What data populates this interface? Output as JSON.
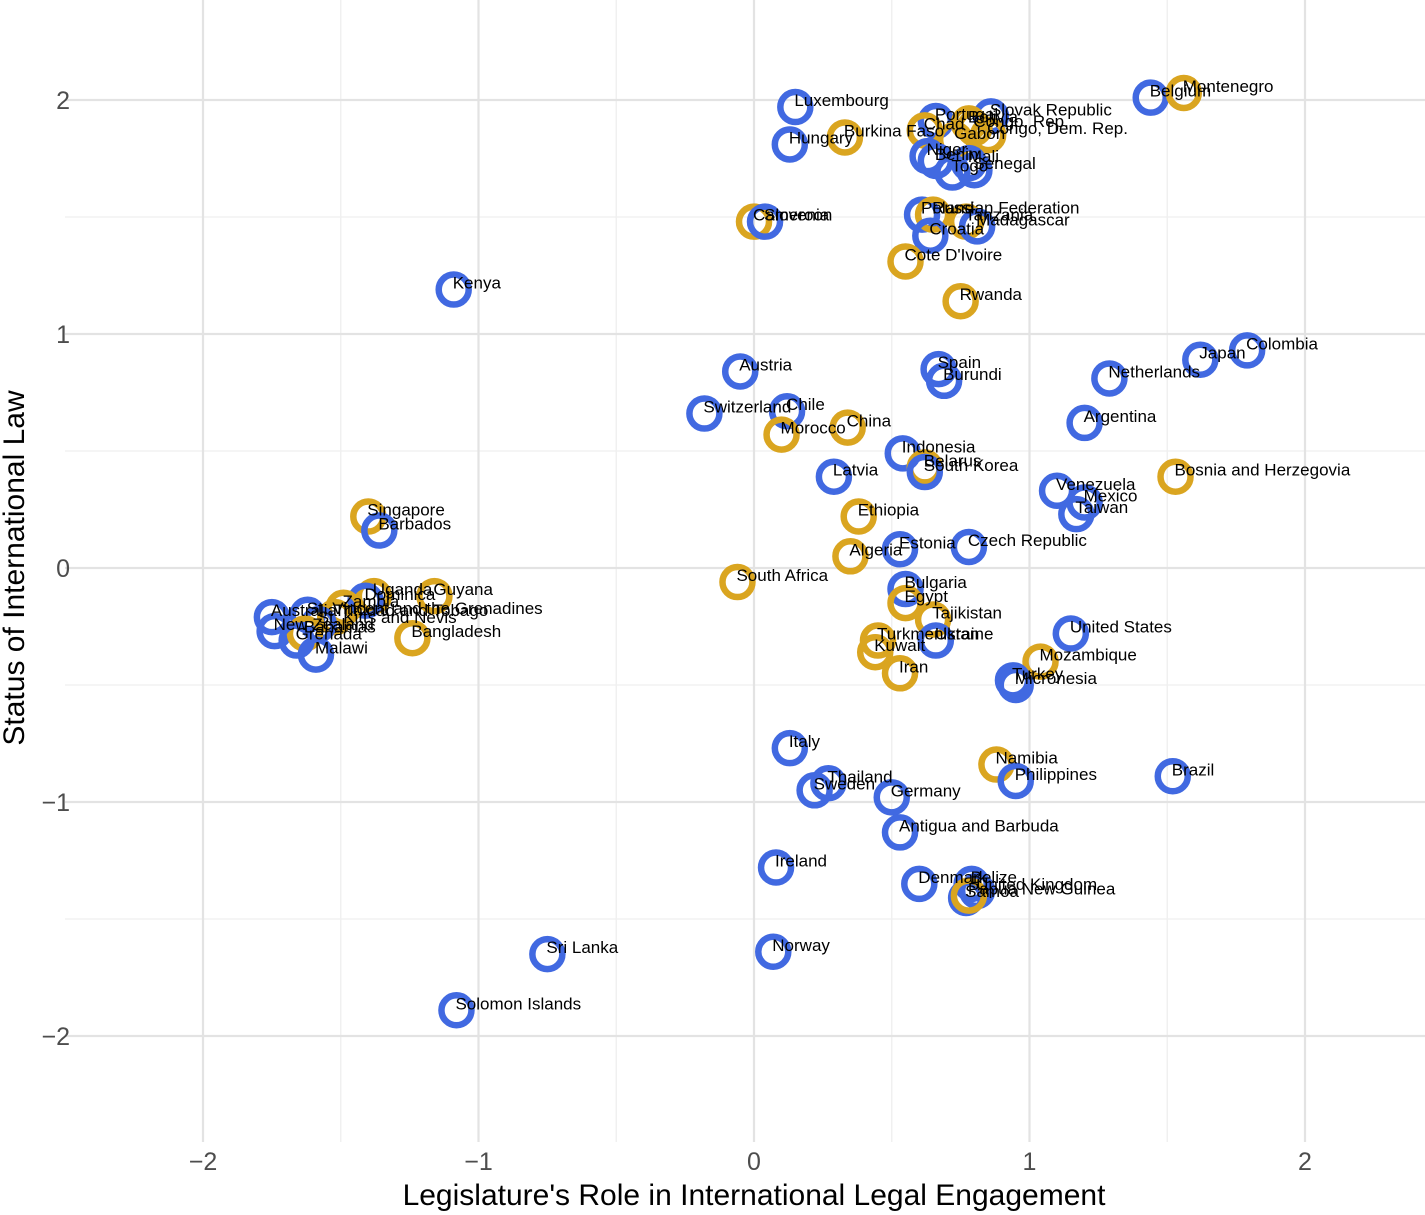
{
  "chart_data": {
    "type": "scatter",
    "xlabel": "Legislature's Role in International Legal Engagement",
    "ylabel": "Status of International Law",
    "xlim": [
      -2.5,
      2.5
    ],
    "ylim": [
      -2.35,
      2.4
    ],
    "x_ticks": [
      -2,
      -1,
      0,
      1,
      2
    ],
    "x_tick_labels": [
      "−2",
      "−1",
      "0",
      "1",
      "2"
    ],
    "y_ticks": [
      -2,
      -1,
      0,
      1,
      2
    ],
    "y_tick_labels": [
      "−2",
      "−1",
      "0",
      "1",
      "2"
    ],
    "grid": true,
    "legend": "none",
    "colors": {
      "blue": "#4169e1",
      "gold": "#daa520"
    },
    "points": [
      {
        "label": "Belgium",
        "x": 1.44,
        "y": 2.01,
        "color": "blue"
      },
      {
        "label": "Montenegro",
        "x": 1.56,
        "y": 2.03,
        "color": "gold"
      },
      {
        "label": "Luxembourg",
        "x": 0.15,
        "y": 1.97,
        "color": "blue"
      },
      {
        "label": "Hungary",
        "x": 0.13,
        "y": 1.81,
        "color": "blue"
      },
      {
        "label": "Burkina Faso",
        "x": 0.33,
        "y": 1.84,
        "color": "gold"
      },
      {
        "label": "Slovak Republic",
        "x": 0.86,
        "y": 1.93,
        "color": "blue"
      },
      {
        "label": "Portugal",
        "x": 0.66,
        "y": 1.91,
        "color": "blue"
      },
      {
        "label": "Bolivia",
        "x": 0.78,
        "y": 1.9,
        "color": "gold"
      },
      {
        "label": "Chad",
        "x": 0.62,
        "y": 1.87,
        "color": "gold"
      },
      {
        "label": "Congo, Rep.",
        "x": 0.8,
        "y": 1.88,
        "color": "gold"
      },
      {
        "label": "Congo, Dem. Rep.",
        "x": 0.85,
        "y": 1.85,
        "color": "gold"
      },
      {
        "label": "Gabon",
        "x": 0.73,
        "y": 1.83,
        "color": "gold"
      },
      {
        "label": "Niger",
        "x": 0.63,
        "y": 1.76,
        "color": "blue"
      },
      {
        "label": "Benin",
        "x": 0.66,
        "y": 1.74,
        "color": "blue"
      },
      {
        "label": "Mali",
        "x": 0.78,
        "y": 1.73,
        "color": "blue"
      },
      {
        "label": "Togo",
        "x": 0.72,
        "y": 1.69,
        "color": "blue"
      },
      {
        "label": "Senegal",
        "x": 0.8,
        "y": 1.7,
        "color": "blue"
      },
      {
        "label": "Cameroon",
        "x": 0.0,
        "y": 1.48,
        "color": "gold"
      },
      {
        "label": "Slovenia",
        "x": 0.04,
        "y": 1.48,
        "color": "blue"
      },
      {
        "label": "Poland",
        "x": 0.61,
        "y": 1.51,
        "color": "blue"
      },
      {
        "label": "Russian Federation",
        "x": 0.65,
        "y": 1.51,
        "color": "gold"
      },
      {
        "label": "Tanzania",
        "x": 0.77,
        "y": 1.48,
        "color": "gold"
      },
      {
        "label": "Madagascar",
        "x": 0.81,
        "y": 1.46,
        "color": "blue"
      },
      {
        "label": "Croatia",
        "x": 0.64,
        "y": 1.42,
        "color": "blue"
      },
      {
        "label": "Cote D'Ivoire",
        "x": 0.55,
        "y": 1.31,
        "color": "gold"
      },
      {
        "label": "Kenya",
        "x": -1.09,
        "y": 1.19,
        "color": "blue"
      },
      {
        "label": "Rwanda",
        "x": 0.75,
        "y": 1.14,
        "color": "gold"
      },
      {
        "label": "Colombia",
        "x": 1.79,
        "y": 0.93,
        "color": "blue"
      },
      {
        "label": "Japan",
        "x": 1.62,
        "y": 0.89,
        "color": "blue"
      },
      {
        "label": "Spain",
        "x": 0.67,
        "y": 0.85,
        "color": "blue"
      },
      {
        "label": "Burundi",
        "x": 0.69,
        "y": 0.8,
        "color": "blue"
      },
      {
        "label": "Netherlands",
        "x": 1.29,
        "y": 0.81,
        "color": "blue"
      },
      {
        "label": "Austria",
        "x": -0.05,
        "y": 0.84,
        "color": "blue"
      },
      {
        "label": "Chile",
        "x": 0.12,
        "y": 0.67,
        "color": "blue"
      },
      {
        "label": "Switzerland",
        "x": -0.18,
        "y": 0.66,
        "color": "blue"
      },
      {
        "label": "Argentina",
        "x": 1.2,
        "y": 0.62,
        "color": "blue"
      },
      {
        "label": "China",
        "x": 0.34,
        "y": 0.6,
        "color": "gold"
      },
      {
        "label": "Morocco",
        "x": 0.1,
        "y": 0.57,
        "color": "gold"
      },
      {
        "label": "Indonesia",
        "x": 0.54,
        "y": 0.49,
        "color": "blue"
      },
      {
        "label": "Belarus",
        "x": 0.62,
        "y": 0.43,
        "color": "gold"
      },
      {
        "label": "South Korea",
        "x": 0.62,
        "y": 0.41,
        "color": "blue"
      },
      {
        "label": "Latvia",
        "x": 0.29,
        "y": 0.39,
        "color": "blue"
      },
      {
        "label": "Bosnia and Herzegovia",
        "x": 1.53,
        "y": 0.39,
        "color": "gold"
      },
      {
        "label": "Venezuela",
        "x": 1.1,
        "y": 0.33,
        "color": "blue"
      },
      {
        "label": "Mexico",
        "x": 1.2,
        "y": 0.28,
        "color": "blue"
      },
      {
        "label": "Taiwan",
        "x": 1.17,
        "y": 0.23,
        "color": "blue"
      },
      {
        "label": "Singapore",
        "x": -1.4,
        "y": 0.22,
        "color": "gold"
      },
      {
        "label": "Barbados",
        "x": -1.36,
        "y": 0.16,
        "color": "blue"
      },
      {
        "label": "Ethiopia",
        "x": 0.38,
        "y": 0.22,
        "color": "gold"
      },
      {
        "label": "Czech Republic",
        "x": 0.78,
        "y": 0.09,
        "color": "blue"
      },
      {
        "label": "Estonia",
        "x": 0.53,
        "y": 0.08,
        "color": "blue"
      },
      {
        "label": "Algeria",
        "x": 0.35,
        "y": 0.05,
        "color": "gold"
      },
      {
        "label": "South Africa",
        "x": -0.06,
        "y": -0.06,
        "color": "gold"
      },
      {
        "label": "Uganda",
        "x": -1.38,
        "y": -0.12,
        "color": "gold"
      },
      {
        "label": "Guyana",
        "x": -1.16,
        "y": -0.12,
        "color": "gold"
      },
      {
        "label": "Dominica",
        "x": -1.41,
        "y": -0.14,
        "color": "blue"
      },
      {
        "label": "Zambia",
        "x": -1.49,
        "y": -0.17,
        "color": "gold"
      },
      {
        "label": "Australia",
        "x": -1.75,
        "y": -0.21,
        "color": "blue"
      },
      {
        "label": "St. Vincent and the Grenadines",
        "x": -1.62,
        "y": -0.2,
        "color": "blue"
      },
      {
        "label": "Trinidad and Tobago",
        "x": -1.52,
        "y": -0.21,
        "color": "gold"
      },
      {
        "label": "St. Kitts and Nevis",
        "x": -1.58,
        "y": -0.24,
        "color": "blue"
      },
      {
        "label": "New Zealand",
        "x": -1.74,
        "y": -0.27,
        "color": "blue"
      },
      {
        "label": "Bahamas",
        "x": -1.63,
        "y": -0.28,
        "color": "gold"
      },
      {
        "label": "Grenada",
        "x": -1.66,
        "y": -0.31,
        "color": "blue"
      },
      {
        "label": "Bangladesh",
        "x": -1.24,
        "y": -0.3,
        "color": "gold"
      },
      {
        "label": "Malawi",
        "x": -1.59,
        "y": -0.37,
        "color": "blue"
      },
      {
        "label": "Bulgaria",
        "x": 0.55,
        "y": -0.09,
        "color": "blue"
      },
      {
        "label": "Egypt",
        "x": 0.55,
        "y": -0.15,
        "color": "gold"
      },
      {
        "label": "Tajikistan",
        "x": 0.65,
        "y": -0.22,
        "color": "gold"
      },
      {
        "label": "Turkmenistan",
        "x": 0.45,
        "y": -0.31,
        "color": "gold"
      },
      {
        "label": "Ukraine",
        "x": 0.66,
        "y": -0.31,
        "color": "blue"
      },
      {
        "label": "Kuwait",
        "x": 0.44,
        "y": -0.36,
        "color": "gold"
      },
      {
        "label": "Iran",
        "x": 0.53,
        "y": -0.45,
        "color": "gold"
      },
      {
        "label": "United States",
        "x": 1.15,
        "y": -0.28,
        "color": "blue"
      },
      {
        "label": "Mozambique",
        "x": 1.04,
        "y": -0.4,
        "color": "gold"
      },
      {
        "label": "Turkey",
        "x": 0.94,
        "y": -0.48,
        "color": "blue"
      },
      {
        "label": "Micronesia",
        "x": 0.95,
        "y": -0.5,
        "color": "blue"
      },
      {
        "label": "Italy",
        "x": 0.13,
        "y": -0.77,
        "color": "blue"
      },
      {
        "label": "Namibia",
        "x": 0.88,
        "y": -0.84,
        "color": "gold"
      },
      {
        "label": "Brazil",
        "x": 1.52,
        "y": -0.89,
        "color": "blue"
      },
      {
        "label": "Philippines",
        "x": 0.95,
        "y": -0.91,
        "color": "blue"
      },
      {
        "label": "Thailand",
        "x": 0.27,
        "y": -0.92,
        "color": "blue"
      },
      {
        "label": "Sweden",
        "x": 0.22,
        "y": -0.95,
        "color": "blue"
      },
      {
        "label": "Germany",
        "x": 0.5,
        "y": -0.98,
        "color": "blue"
      },
      {
        "label": "Antigua and Barbuda",
        "x": 0.53,
        "y": -1.13,
        "color": "blue"
      },
      {
        "label": "Ireland",
        "x": 0.08,
        "y": -1.28,
        "color": "blue"
      },
      {
        "label": "Denmark",
        "x": 0.6,
        "y": -1.35,
        "color": "blue"
      },
      {
        "label": "Belize",
        "x": 0.79,
        "y": -1.35,
        "color": "blue"
      },
      {
        "label": "United Kingdom",
        "x": 0.81,
        "y": -1.38,
        "color": "blue"
      },
      {
        "label": "Samoa",
        "x": 0.77,
        "y": -1.41,
        "color": "blue"
      },
      {
        "label": "Papua New Guinea",
        "x": 0.78,
        "y": -1.4,
        "color": "gold"
      },
      {
        "label": "Norway",
        "x": 0.07,
        "y": -1.64,
        "color": "blue"
      },
      {
        "label": "Sri Lanka",
        "x": -0.75,
        "y": -1.65,
        "color": "blue"
      },
      {
        "label": "Solomon Islands",
        "x": -1.08,
        "y": -1.89,
        "color": "blue"
      }
    ]
  }
}
